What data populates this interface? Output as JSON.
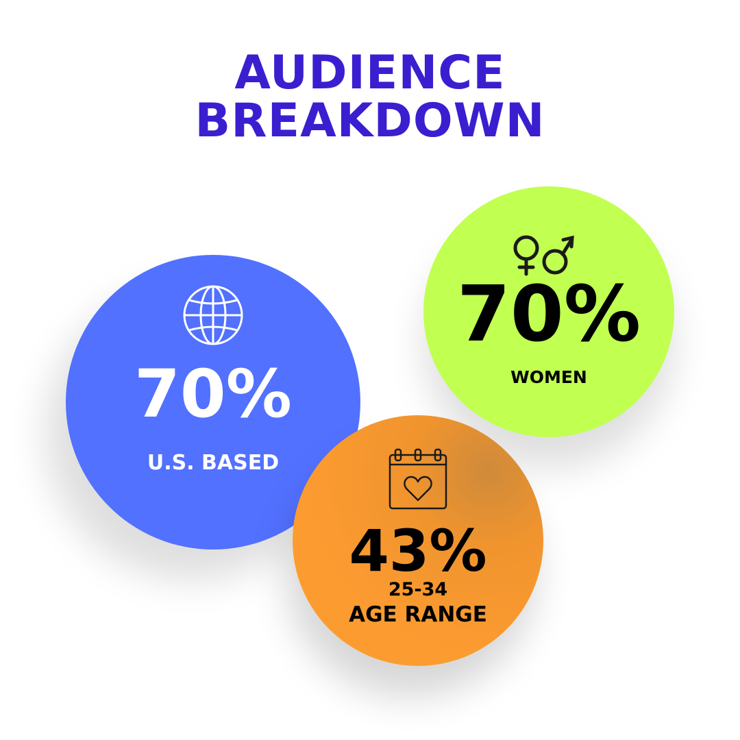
{
  "title": {
    "line1": "AUDIENCE",
    "line2": "BREAKDOWN"
  },
  "colors": {
    "title": "#3a1fd0",
    "blue": "#5271ff",
    "green": "#c1ff51",
    "orange": "#ff9f30"
  },
  "stats": {
    "location": {
      "icon": "globe-icon",
      "percent": "70%",
      "label": "U.S. BASED"
    },
    "gender": {
      "icon": "gender-symbols-icon",
      "percent": "70%",
      "label": "WOMEN"
    },
    "age": {
      "icon": "calendar-heart-icon",
      "percent": "43%",
      "label_line1": "25-34",
      "label_line2": "AGE RANGE"
    }
  }
}
